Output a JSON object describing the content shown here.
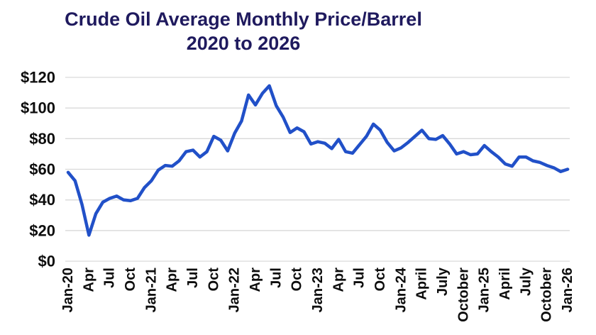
{
  "chart_data": {
    "type": "line",
    "title": "Crude Oil Average Monthly Price/Barrel 2020 to 2026",
    "title_line1": "Crude Oil Average Monthly Price/Barrel",
    "title_line2": "2020 to 2026",
    "xlabel": "",
    "ylabel": "",
    "ylim": [
      0,
      120
    ],
    "grid": "horizontal",
    "legend": "none",
    "y_ticks": [
      {
        "label": "$0",
        "value": 0
      },
      {
        "label": "$20",
        "value": 20
      },
      {
        "label": "$40",
        "value": 40
      },
      {
        "label": "$60",
        "value": 60
      },
      {
        "label": "$80",
        "value": 80
      },
      {
        "label": "$100",
        "value": 100
      },
      {
        "label": "$120",
        "value": 120
      }
    ],
    "x_tick_labels": [
      "Jan-20",
      "Apr",
      "Jul",
      "Oct",
      "Jan-21",
      "Apr",
      "Jul",
      "Oct",
      "Jan-22",
      "Apr",
      "Jul",
      "Oct",
      "Jan-23",
      "Apr",
      "Jul",
      "Oct",
      "Jan-24",
      "April",
      "July",
      "October",
      "Jan-25",
      "April",
      "July",
      "October",
      "Jan-26"
    ],
    "x_tick_every_n_months": 3,
    "months": [
      "Jan-20",
      "Feb-20",
      "Mar-20",
      "Apr-20",
      "May-20",
      "Jun-20",
      "Jul-20",
      "Aug-20",
      "Sep-20",
      "Oct-20",
      "Nov-20",
      "Dec-20",
      "Jan-21",
      "Feb-21",
      "Mar-21",
      "Apr-21",
      "May-21",
      "Jun-21",
      "Jul-21",
      "Aug-21",
      "Sep-21",
      "Oct-21",
      "Nov-21",
      "Dec-21",
      "Jan-22",
      "Feb-22",
      "Mar-22",
      "Apr-22",
      "May-22",
      "Jun-22",
      "Jul-22",
      "Aug-22",
      "Sep-22",
      "Oct-22",
      "Nov-22",
      "Dec-22",
      "Jan-23",
      "Feb-23",
      "Mar-23",
      "Apr-23",
      "May-23",
      "Jun-23",
      "Jul-23",
      "Aug-23",
      "Sep-23",
      "Oct-23",
      "Nov-23",
      "Dec-23",
      "Jan-24",
      "Feb-24",
      "Mar-24",
      "Apr-24",
      "May-24",
      "Jun-24",
      "Jul-24",
      "Aug-24",
      "Sep-24",
      "Oct-24",
      "Nov-24",
      "Dec-24",
      "Jan-25",
      "Feb-25",
      "Mar-25",
      "Apr-25",
      "May-25",
      "Jun-25",
      "Jul-25",
      "Aug-25",
      "Sep-25",
      "Oct-25",
      "Nov-25",
      "Dec-25",
      "Jan-26"
    ],
    "series": [
      {
        "name": "Crude oil average monthly price per barrel (USD)",
        "values": [
          58,
          52.5,
          37,
          17,
          31,
          38.5,
          41,
          42.5,
          40,
          39.5,
          41,
          48,
          52.5,
          59.5,
          62.5,
          62,
          65.5,
          71.5,
          72.5,
          68,
          71.5,
          81.5,
          79,
          72,
          83.5,
          91.5,
          108.5,
          102,
          109.5,
          114.5,
          101.5,
          94,
          84,
          87,
          84.5,
          76.5,
          78,
          77,
          73.5,
          79.5,
          71.5,
          70.5,
          76,
          81.5,
          89.5,
          85.5,
          77.5,
          72,
          74,
          77.5,
          81.5,
          85.5,
          80,
          79.5,
          82,
          76.5,
          70,
          71.5,
          69.5,
          70,
          75.5,
          71.5,
          68,
          63.5,
          62,
          68,
          68,
          65.5,
          64.5,
          62.5,
          61,
          58.5,
          60
        ]
      }
    ],
    "colors": {
      "line": "#2150C8",
      "title": "#1F1A5E",
      "grid": "#D9D9D9",
      "tick_text": "#0D0D0D",
      "background": "#FFFFFF"
    }
  }
}
